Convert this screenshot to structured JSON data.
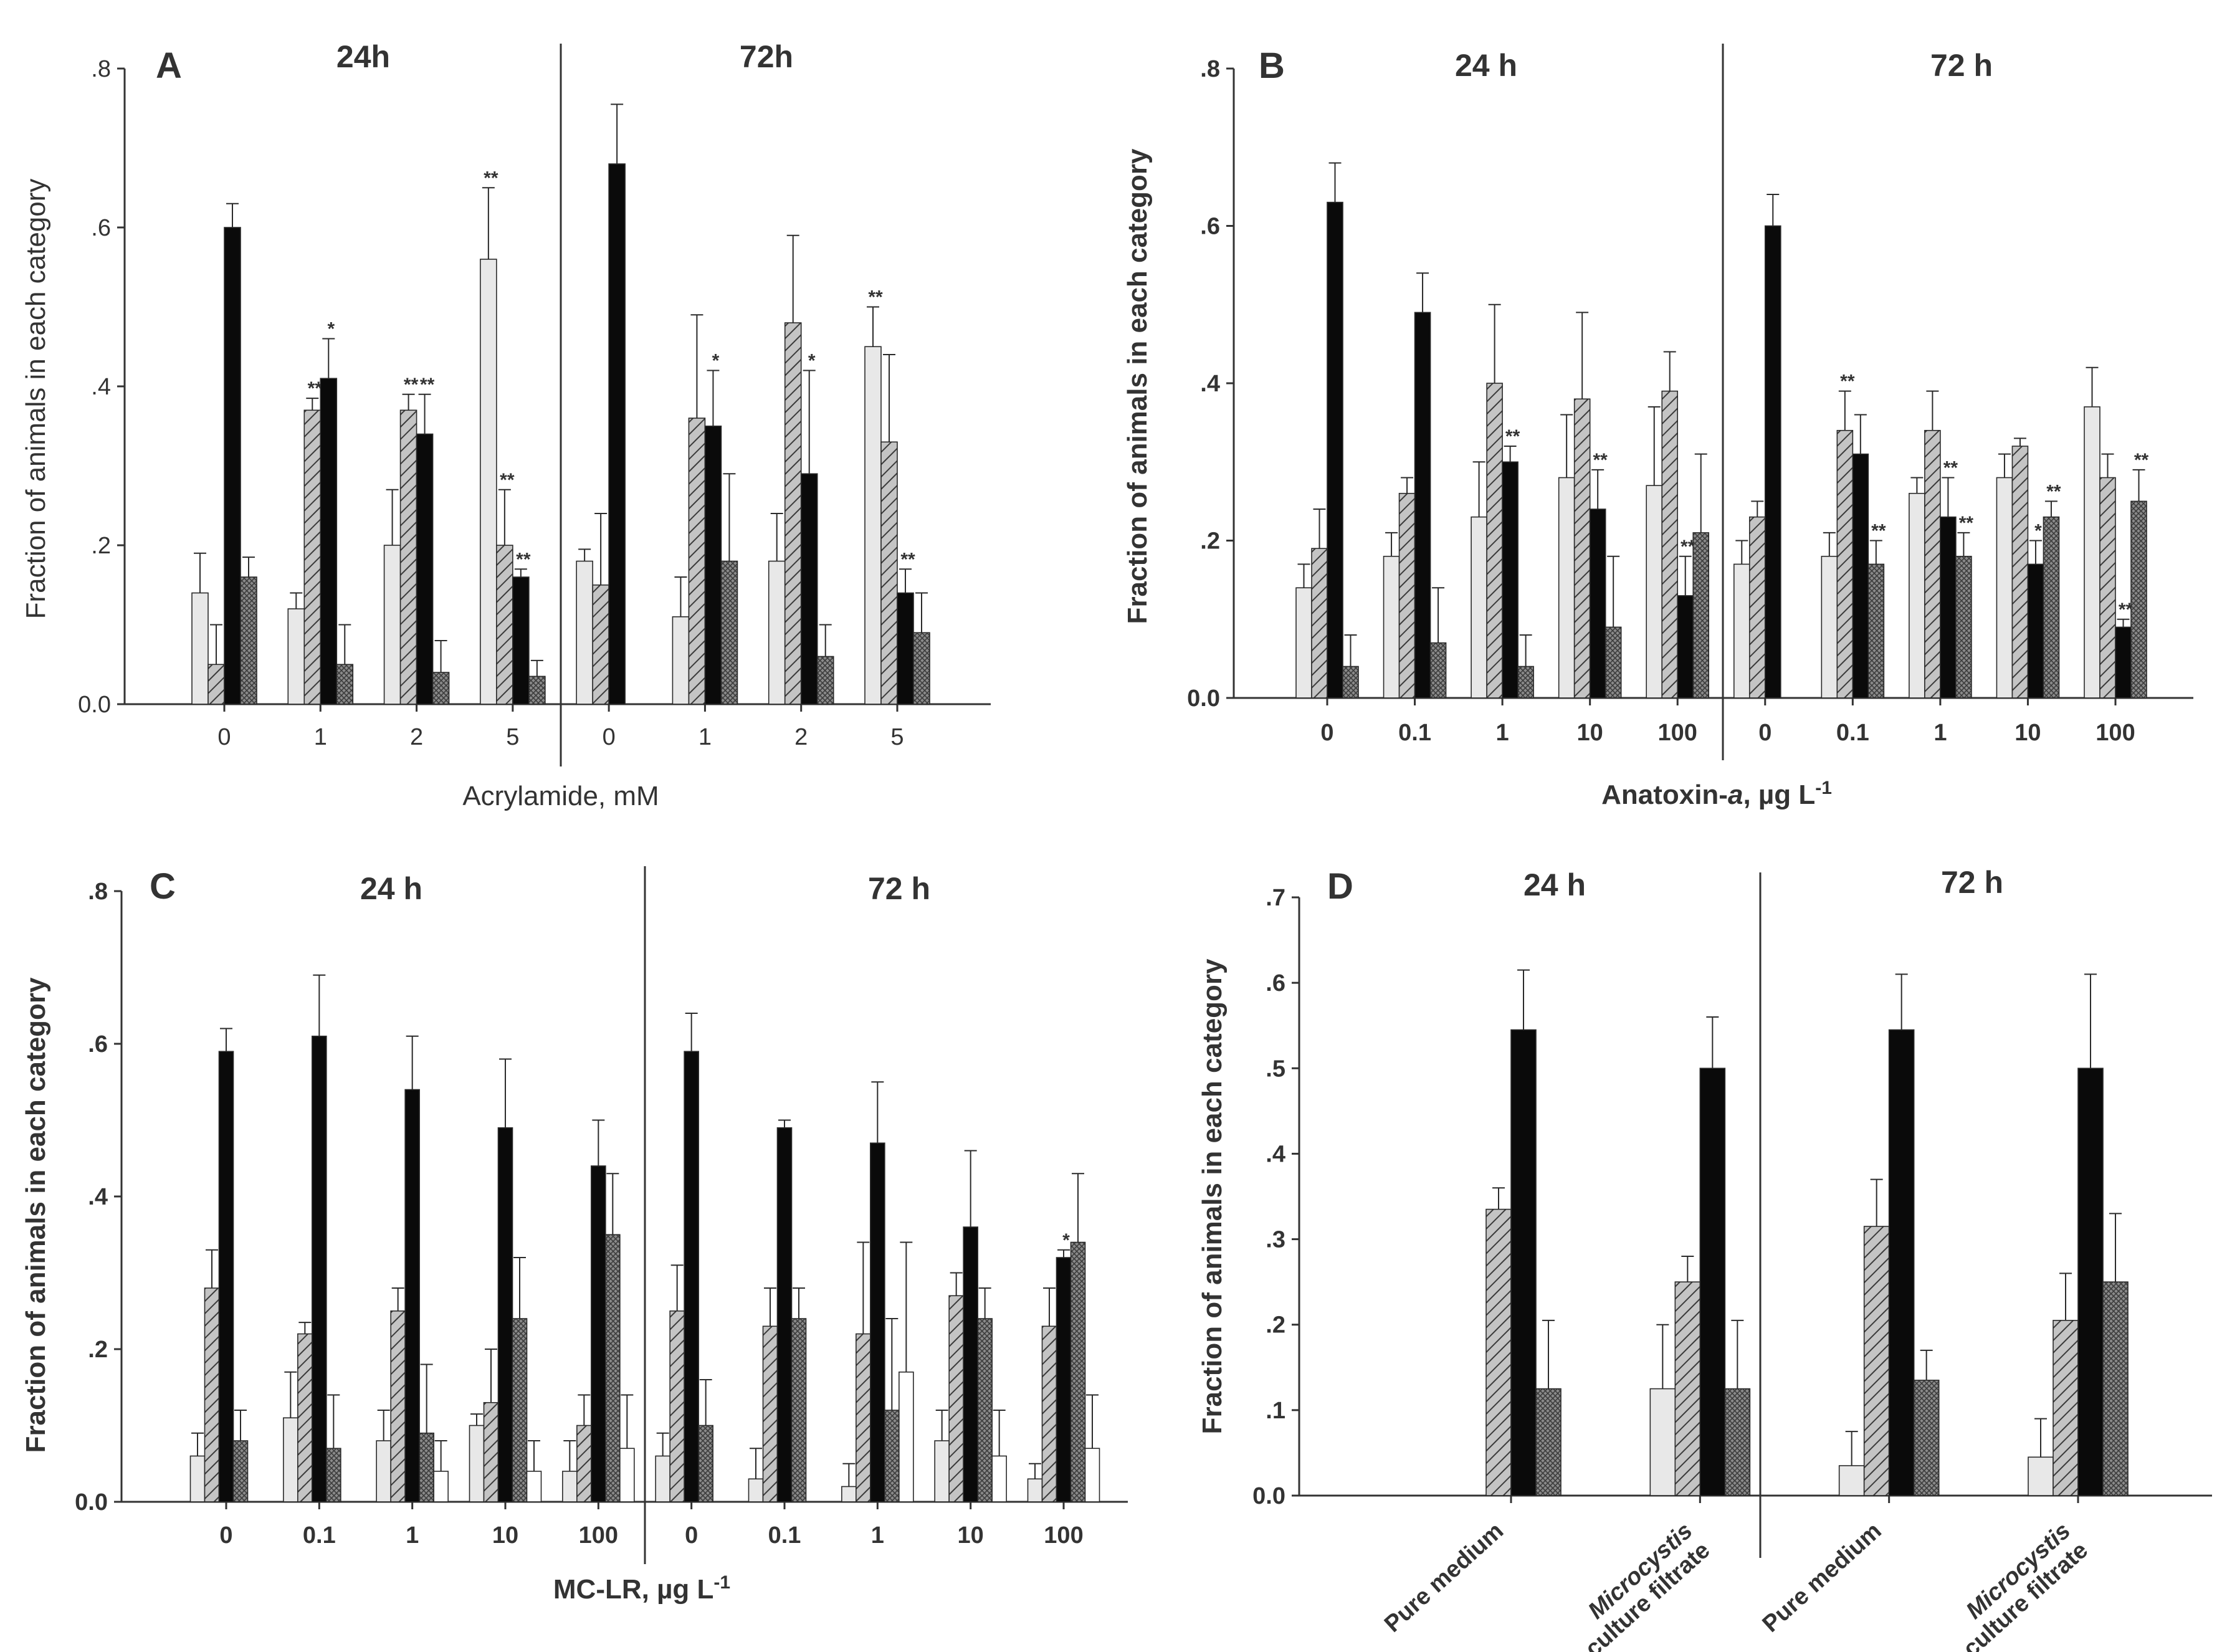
{
  "figure": {
    "ylabel": "Fraction of animals in each category",
    "series_names": [
      "Light grey",
      "Hatched",
      "Black",
      "Grey cross-hatched",
      "White"
    ],
    "colors": {
      "light": "#e8e8e8",
      "hatch": "#bdbdbd",
      "black": "#0a0a0a",
      "dark": "#7a7a7a",
      "white": "#ffffff",
      "axis": "#333333"
    }
  },
  "chart_data": [
    {
      "panel": "A",
      "type": "bar",
      "title": "",
      "xlabel": "Acrylamide, mM",
      "ylabel": "Fraction of animals in each category",
      "ylim": [
        0,
        0.8
      ],
      "yticks": [
        "0.0",
        ".2",
        ".4",
        ".6",
        ".8"
      ],
      "ytick_values": [
        0,
        0.2,
        0.4,
        0.6,
        0.8
      ],
      "group_titles": [
        "24h",
        "72h"
      ],
      "categories": [
        "0",
        "1",
        "2",
        "5",
        "0",
        "1",
        "2",
        "5"
      ],
      "divider_after": 4,
      "series": [
        {
          "name": "Light grey",
          "style": "light",
          "values": [
            0.14,
            0.12,
            0.2,
            0.56,
            0.18,
            0.11,
            0.18,
            0.45
          ],
          "errors": [
            0.05,
            0.02,
            0.07,
            0.09,
            0.015,
            0.05,
            0.06,
            0.05
          ],
          "sig": [
            "",
            "",
            "",
            "**",
            "",
            "",
            "",
            "**"
          ]
        },
        {
          "name": "Hatched",
          "style": "hatch",
          "values": [
            0.05,
            0.37,
            0.37,
            0.2,
            0.15,
            0.36,
            0.48,
            0.33
          ],
          "errors": [
            0.05,
            0.015,
            0.02,
            0.07,
            0.09,
            0.13,
            0.11,
            0.11
          ],
          "sig": [
            "",
            "**",
            "**",
            "**",
            "",
            "",
            "",
            ""
          ]
        },
        {
          "name": "Black",
          "style": "black",
          "values": [
            0.6,
            0.41,
            0.34,
            0.16,
            0.68,
            0.35,
            0.29,
            0.14
          ],
          "errors": [
            0.03,
            0.05,
            0.05,
            0.01,
            0.075,
            0.07,
            0.13,
            0.03
          ],
          "sig": [
            "",
            "*",
            "**",
            "**",
            "",
            "*",
            "*",
            "**"
          ]
        },
        {
          "name": "Grey cross-hatched",
          "style": "dark",
          "values": [
            0.16,
            0.05,
            0.04,
            0.035,
            null,
            0.18,
            0.06,
            0.09
          ],
          "errors": [
            0.025,
            0.05,
            0.04,
            0.02,
            null,
            0.11,
            0.04,
            0.05
          ],
          "sig": [
            "",
            "",
            "",
            "",
            "",
            "",
            "",
            ""
          ]
        }
      ]
    },
    {
      "panel": "B",
      "type": "bar",
      "title": "",
      "xlabel": "Anatoxin-a, µg L-1",
      "xlabel_parts": [
        "Anatoxin-",
        "a",
        ", µg L",
        "-1"
      ],
      "ylabel": "Fraction of animals in each category",
      "ylim": [
        0,
        0.8
      ],
      "yticks": [
        "0.0",
        ".2",
        ".4",
        ".6",
        ".8"
      ],
      "ytick_values": [
        0,
        0.2,
        0.4,
        0.6,
        0.8
      ],
      "group_titles": [
        "24 h",
        "72 h"
      ],
      "categories": [
        "0",
        "0.1",
        "1",
        "10",
        "100",
        "0",
        "0.1",
        "1",
        "10",
        "100"
      ],
      "divider_after": 5,
      "series": [
        {
          "name": "Light grey",
          "style": "light",
          "values": [
            0.14,
            0.18,
            0.23,
            0.28,
            0.27,
            0.17,
            0.18,
            0.26,
            0.28,
            0.37
          ],
          "errors": [
            0.03,
            0.03,
            0.07,
            0.08,
            0.1,
            0.03,
            0.03,
            0.02,
            0.03,
            0.05
          ],
          "sig": [
            "",
            "",
            "",
            "",
            "",
            "",
            "",
            "",
            "",
            ""
          ]
        },
        {
          "name": "Hatched",
          "style": "hatch",
          "values": [
            0.19,
            0.26,
            0.4,
            0.38,
            0.39,
            0.23,
            0.34,
            0.34,
            0.32,
            0.28
          ],
          "errors": [
            0.05,
            0.02,
            0.1,
            0.11,
            0.05,
            0.02,
            0.05,
            0.05,
            0.01,
            0.03
          ],
          "sig": [
            "",
            "",
            "",
            "",
            "",
            "",
            "**",
            "",
            "",
            ""
          ]
        },
        {
          "name": "Black",
          "style": "black",
          "values": [
            0.63,
            0.49,
            0.3,
            0.24,
            0.13,
            0.6,
            0.31,
            0.23,
            0.17,
            0.09
          ],
          "errors": [
            0.05,
            0.05,
            0.02,
            0.05,
            0.05,
            0.04,
            0.05,
            0.05,
            0.03,
            0.01
          ],
          "sig": [
            "",
            "",
            "**",
            "**",
            "**",
            "",
            "",
            "**",
            "*",
            "**"
          ]
        },
        {
          "name": "Grey cross-hatched",
          "style": "dark",
          "values": [
            0.04,
            0.07,
            0.04,
            0.09,
            0.21,
            null,
            0.17,
            0.18,
            0.23,
            0.25
          ],
          "errors": [
            0.04,
            0.07,
            0.04,
            0.09,
            0.1,
            null,
            0.03,
            0.03,
            0.02,
            0.04
          ],
          "sig": [
            "",
            "",
            "",
            "",
            "",
            "",
            "**",
            "**",
            "**",
            "**"
          ]
        }
      ]
    },
    {
      "panel": "C",
      "type": "bar",
      "title": "",
      "xlabel": "MC-LR, µg L-1",
      "xlabel_parts": [
        "MC-LR, µg L",
        "-1"
      ],
      "ylabel": "Fraction of animals in each category",
      "ylim": [
        0,
        0.8
      ],
      "yticks": [
        "0.0",
        ".2",
        ".4",
        ".6",
        ".8"
      ],
      "ytick_values": [
        0,
        0.2,
        0.4,
        0.6,
        0.8
      ],
      "group_titles": [
        "24 h",
        "72 h"
      ],
      "categories": [
        "0",
        "0.1",
        "1",
        "10",
        "100",
        "0",
        "0.1",
        "1",
        "10",
        "100"
      ],
      "divider_after": 5,
      "series": [
        {
          "name": "Light grey",
          "style": "light",
          "values": [
            0.06,
            0.11,
            0.08,
            0.1,
            0.04,
            0.06,
            0.03,
            0.02,
            0.08,
            0.03
          ],
          "errors": [
            0.03,
            0.06,
            0.04,
            0.015,
            0.04,
            0.03,
            0.04,
            0.03,
            0.04,
            0.02
          ],
          "sig": [
            "",
            "",
            "",
            "",
            "",
            "",
            "",
            "",
            "",
            ""
          ]
        },
        {
          "name": "Hatched",
          "style": "hatch",
          "values": [
            0.28,
            0.22,
            0.25,
            0.13,
            0.1,
            0.25,
            0.23,
            0.22,
            0.27,
            0.23
          ],
          "errors": [
            0.05,
            0.015,
            0.03,
            0.07,
            0.04,
            0.06,
            0.05,
            0.12,
            0.03,
            0.05
          ],
          "sig": [
            "",
            "",
            "",
            "",
            "",
            "",
            "",
            "",
            "",
            ""
          ]
        },
        {
          "name": "Black",
          "style": "black",
          "values": [
            0.59,
            0.61,
            0.54,
            0.49,
            0.44,
            0.59,
            0.49,
            0.47,
            0.36,
            0.32
          ],
          "errors": [
            0.03,
            0.08,
            0.07,
            0.09,
            0.06,
            0.05,
            0.01,
            0.08,
            0.1,
            0.01
          ],
          "sig": [
            "",
            "",
            "",
            "",
            "",
            "",
            "",
            "",
            "",
            "*"
          ]
        },
        {
          "name": "Grey cross-hatched",
          "style": "dark",
          "values": [
            0.08,
            0.07,
            0.09,
            0.24,
            0.35,
            0.1,
            0.24,
            0.12,
            0.24,
            0.34
          ],
          "errors": [
            0.04,
            0.07,
            0.09,
            0.08,
            0.08,
            0.06,
            0.04,
            0.12,
            0.04,
            0.09
          ],
          "sig": [
            "",
            "",
            "",
            "",
            "",
            "",
            "",
            "",
            "",
            ""
          ]
        },
        {
          "name": "White",
          "style": "white",
          "values": [
            null,
            null,
            0.04,
            0.04,
            0.07,
            null,
            null,
            0.17,
            0.06,
            0.07
          ],
          "errors": [
            null,
            null,
            0.04,
            0.04,
            0.07,
            null,
            null,
            0.17,
            0.06,
            0.07
          ],
          "sig": [
            "",
            "",
            "",
            "",
            "",
            "",
            "",
            "",
            "",
            ""
          ]
        }
      ]
    },
    {
      "panel": "D",
      "type": "bar",
      "title": "",
      "xlabel": "",
      "ylabel": "Fraction of animals in each category",
      "ylim": [
        0,
        0.7
      ],
      "yticks": [
        "0.0",
        ".1",
        ".2",
        ".3",
        ".4",
        ".5",
        ".6",
        ".7"
      ],
      "ytick_values": [
        0,
        0.1,
        0.2,
        0.3,
        0.4,
        0.5,
        0.6,
        0.7
      ],
      "group_titles": [
        "24 h",
        "72 h"
      ],
      "categories": [
        "Pure medium",
        "Microcystis culture filtrate",
        "Pure medium",
        "Microcystis culture filtrate"
      ],
      "category_labels": [
        [
          "Pure medium"
        ],
        [
          "Microcystis",
          "culture filtrate"
        ],
        [
          "Pure medium"
        ],
        [
          "Microcystis",
          "culture filtrate"
        ]
      ],
      "divider_after": 2,
      "series": [
        {
          "name": "Light grey",
          "style": "light",
          "values": [
            null,
            0.125,
            0.035,
            0.045
          ],
          "errors": [
            null,
            0.075,
            0.04,
            0.045
          ],
          "sig": [
            "",
            "",
            "",
            ""
          ]
        },
        {
          "name": "Hatched",
          "style": "hatch",
          "values": [
            0.335,
            0.25,
            0.315,
            0.205
          ],
          "errors": [
            0.025,
            0.03,
            0.055,
            0.055
          ],
          "sig": [
            "",
            "",
            "",
            ""
          ]
        },
        {
          "name": "Black",
          "style": "black",
          "values": [
            0.545,
            0.5,
            0.545,
            0.5
          ],
          "errors": [
            0.07,
            0.06,
            0.065,
            0.11
          ],
          "sig": [
            "",
            "",
            "",
            ""
          ]
        },
        {
          "name": "Grey cross-hatched",
          "style": "dark",
          "values": [
            0.125,
            0.125,
            0.135,
            0.25
          ],
          "errors": [
            0.08,
            0.08,
            0.035,
            0.08
          ],
          "sig": [
            "",
            "",
            "",
            ""
          ]
        }
      ]
    }
  ]
}
